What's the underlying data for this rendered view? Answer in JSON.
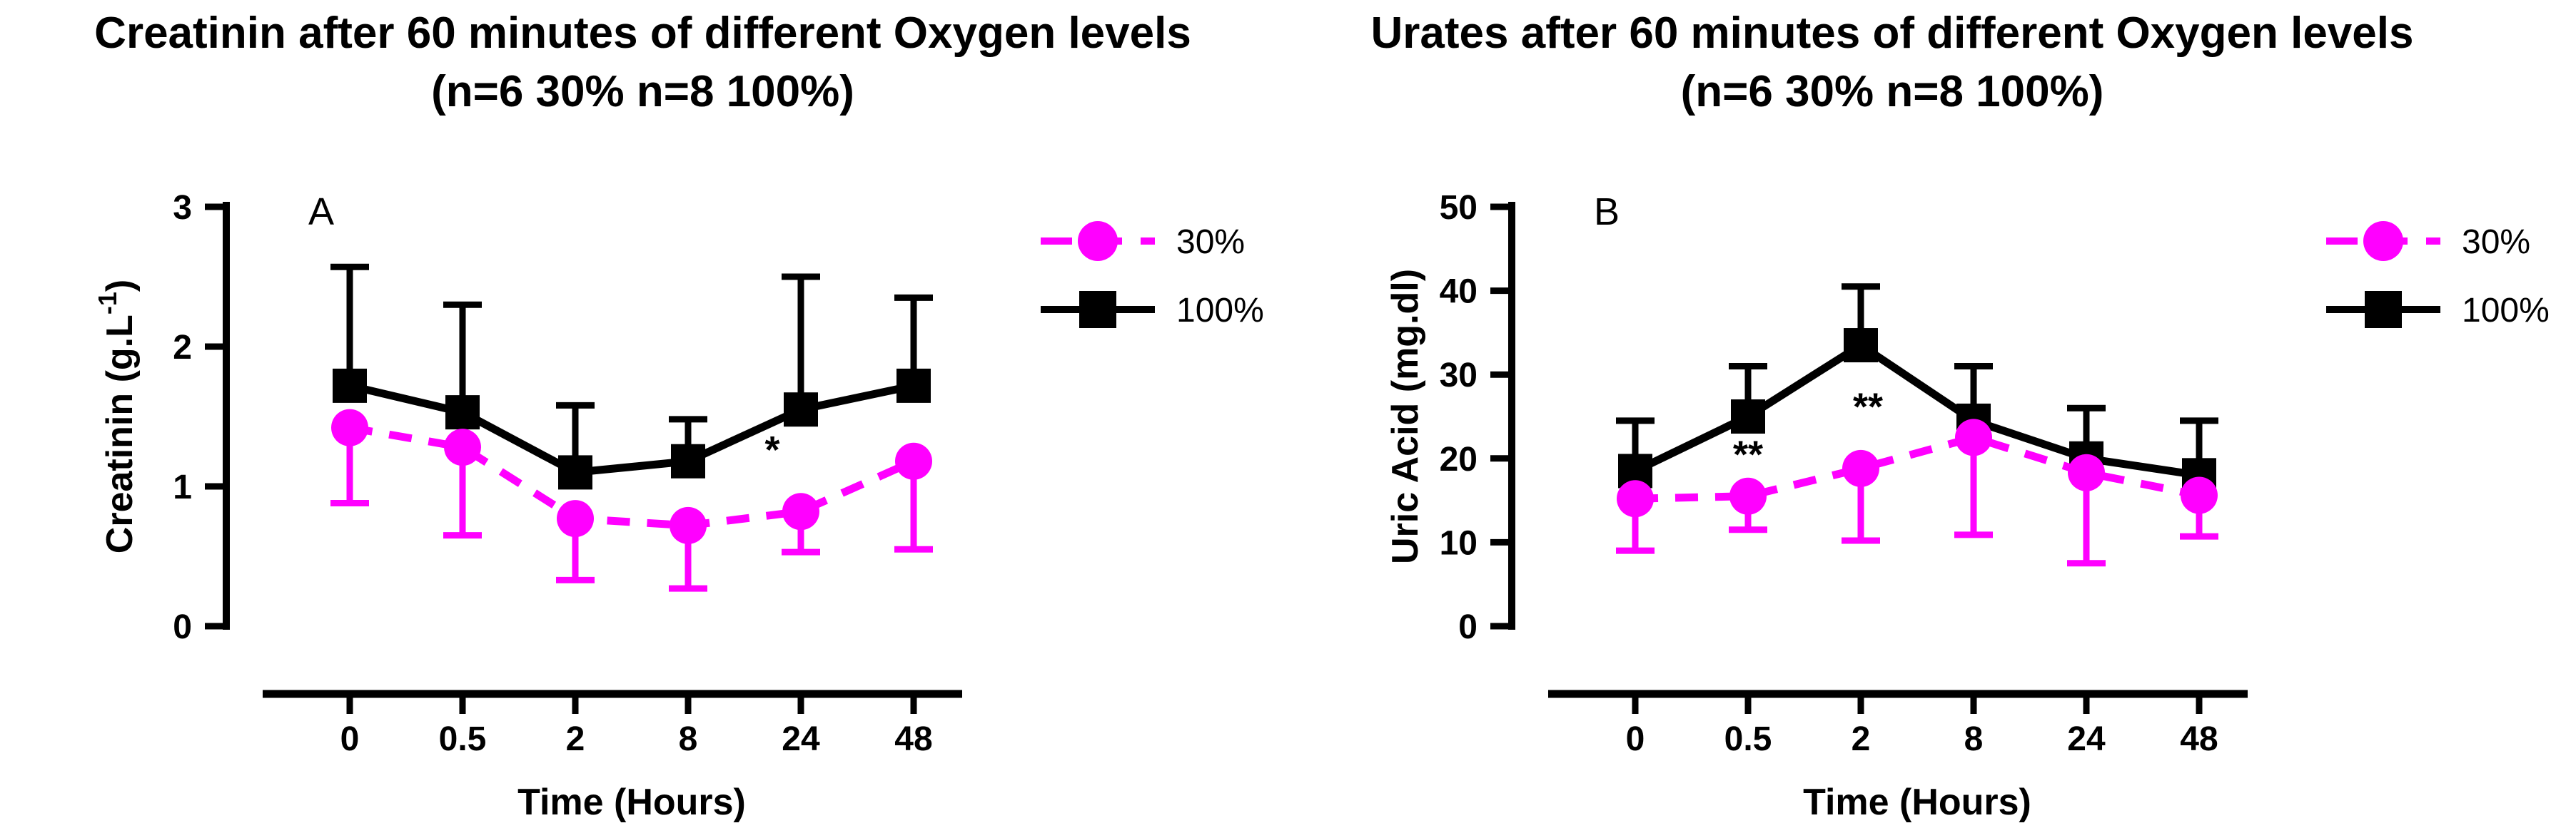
{
  "figure": {
    "background": "#ffffff",
    "accent_magenta": "#ff00ff",
    "accent_black": "#000000"
  },
  "chart_data": [
    {
      "type": "line",
      "panel_letter": "A",
      "title": "Creatinin after 60 minutes of different Oxygen levels",
      "subtitle": "(n=6 30% n=8 100%)",
      "xlabel": "Time (Hours)",
      "ylabel": "Creatinin (g.L⁻¹)",
      "ylabel_parts": {
        "prefix": "Creatinin (g.L",
        "sup": "-1",
        "suffix": ")"
      },
      "categories": [
        "0",
        "0.5",
        "2",
        "8",
        "24",
        "48"
      ],
      "ylim": [
        0,
        3
      ],
      "yticks": [
        0,
        1,
        2,
        3
      ],
      "grid": false,
      "legend_position": "right-top",
      "series": [
        {
          "name": "100%",
          "color": "#000000",
          "marker": "square",
          "line_style": "solid",
          "error_dir": "up",
          "values": [
            1.72,
            1.53,
            1.1,
            1.18,
            1.55,
            1.72
          ],
          "errors": [
            0.85,
            0.77,
            0.48,
            0.3,
            0.95,
            0.63
          ]
        },
        {
          "name": "30%",
          "color": "#ff00ff",
          "marker": "circle",
          "line_style": "dashed",
          "error_dir": "down",
          "values": [
            1.42,
            1.28,
            0.77,
            0.72,
            0.82,
            1.18
          ],
          "errors": [
            0.54,
            0.63,
            0.44,
            0.45,
            0.29,
            0.63
          ]
        }
      ],
      "annotations": [
        {
          "text": "*",
          "x_index": 4,
          "dx": -40,
          "y": 1.27
        }
      ],
      "legend": [
        {
          "label": "30%"
        },
        {
          "label": "100%"
        }
      ]
    },
    {
      "type": "line",
      "panel_letter": "B",
      "title": "Urates after 60 minutes of different Oxygen levels",
      "subtitle": "(n=6 30% n=8 100%)",
      "xlabel": "Time (Hours)",
      "ylabel": "Uric Acid (mg.dl)",
      "ylabel_parts": {
        "prefix": "Uric Acid (mg.dl)",
        "sup": "",
        "suffix": ""
      },
      "categories": [
        "0",
        "0.5",
        "2",
        "8",
        "24",
        "48"
      ],
      "ylim": [
        0,
        50
      ],
      "yticks": [
        0,
        10,
        20,
        30,
        40,
        50
      ],
      "grid": false,
      "legend_position": "right-top",
      "series": [
        {
          "name": "100%",
          "color": "#000000",
          "marker": "square",
          "line_style": "solid",
          "error_dir": "up",
          "values": [
            18.5,
            25.0,
            33.5,
            24.5,
            20.0,
            18.0
          ],
          "errors": [
            6.0,
            6.0,
            7.0,
            6.5,
            6.0,
            6.5
          ]
        },
        {
          "name": "30%",
          "color": "#ff00ff",
          "marker": "circle",
          "line_style": "dashed",
          "error_dir": "down",
          "values": [
            15.2,
            15.5,
            18.8,
            22.5,
            18.3,
            15.6
          ],
          "errors": [
            6.2,
            4.0,
            8.6,
            11.6,
            10.8,
            4.9
          ]
        }
      ],
      "annotations": [
        {
          "text": "**",
          "x_index": 1,
          "dx": 0,
          "y": 20.6
        },
        {
          "text": "**",
          "x_index": 2,
          "dx": 10,
          "y": 26.3
        }
      ],
      "legend": [
        {
          "label": "30%"
        },
        {
          "label": "100%"
        }
      ]
    }
  ]
}
